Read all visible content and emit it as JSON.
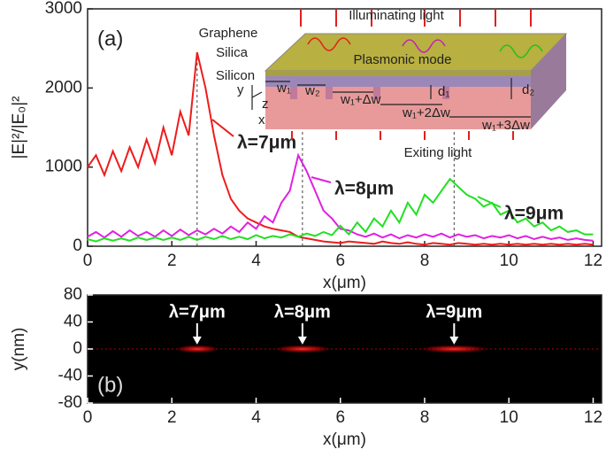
{
  "chart_data": [
    {
      "type": "line",
      "panel": "(a)",
      "ylabel": "|E|²/|E₀|²",
      "xlabel": "x(μm)",
      "xlim": [
        0,
        12.2
      ],
      "ylim": [
        0,
        3000
      ],
      "xticks": [
        0,
        2,
        4,
        6,
        8,
        10,
        12
      ],
      "yticks": [
        0,
        1000,
        2000,
        3000
      ],
      "x": [
        0,
        0.2,
        0.4,
        0.6,
        0.8,
        1,
        1.2,
        1.4,
        1.6,
        1.8,
        2,
        2.2,
        2.4,
        2.6,
        2.8,
        3,
        3.2,
        3.4,
        3.6,
        3.8,
        4,
        4.2,
        4.4,
        4.6,
        4.8,
        5,
        5.2,
        5.4,
        5.6,
        5.8,
        6,
        6.2,
        6.4,
        6.6,
        6.8,
        7,
        7.2,
        7.4,
        7.6,
        7.8,
        8,
        8.2,
        8.4,
        8.6,
        8.8,
        9,
        9.2,
        9.4,
        9.6,
        9.8,
        10,
        10.2,
        10.4,
        10.6,
        10.8,
        11,
        11.2,
        11.4,
        11.6,
        11.8,
        12
      ],
      "series": [
        {
          "name": "λ=7μm",
          "color": "#ee1c1c",
          "peak_x": 2.6,
          "values": [
            1000,
            1150,
            900,
            1200,
            950,
            1250,
            1000,
            1350,
            1050,
            1500,
            1150,
            1700,
            1400,
            2450,
            2000,
            1400,
            900,
            600,
            450,
            350,
            300,
            250,
            220,
            200,
            180,
            120,
            100,
            80,
            60,
            50,
            40,
            60,
            50,
            40,
            30,
            60,
            40,
            30,
            50,
            30,
            20,
            40,
            30,
            20,
            40,
            30,
            20,
            30,
            20,
            30,
            20,
            30,
            20,
            30,
            20,
            30,
            20,
            30,
            20,
            30,
            20
          ]
        },
        {
          "name": "λ=8μm",
          "color": "#e020e0",
          "peak_x": 5.1,
          "values": [
            120,
            180,
            110,
            190,
            120,
            200,
            130,
            180,
            120,
            200,
            130,
            210,
            140,
            200,
            150,
            220,
            160,
            250,
            180,
            300,
            220,
            380,
            300,
            550,
            700,
            1150,
            950,
            700,
            450,
            350,
            220,
            200,
            150,
            120,
            160,
            110,
            150,
            100,
            140,
            110,
            150,
            120,
            160,
            110,
            150,
            120,
            140,
            100,
            130,
            110,
            140,
            100,
            130,
            90,
            120,
            90,
            110,
            80,
            100,
            80,
            70
          ]
        },
        {
          "name": "λ=9μm",
          "color": "#22e022",
          "peak_x": 8.7,
          "values": [
            90,
            60,
            100,
            70,
            100,
            70,
            110,
            80,
            110,
            80,
            110,
            80,
            120,
            80,
            120,
            90,
            130,
            90,
            120,
            90,
            140,
            100,
            130,
            110,
            150,
            120,
            160,
            130,
            180,
            140,
            260,
            150,
            300,
            180,
            350,
            250,
            450,
            300,
            550,
            400,
            650,
            550,
            700,
            850,
            750,
            650,
            600,
            500,
            550,
            400,
            450,
            300,
            350,
            250,
            300,
            200,
            250,
            180,
            200,
            150,
            150
          ]
        }
      ],
      "inset": {
        "labels": [
          "Illuminating light",
          "Graphene",
          "Silica",
          "Silicon",
          "Plasmonic mode",
          "Exiting light",
          "w₁",
          "w₂",
          "w₁+Δw",
          "w₁+2Δw",
          "w₁+3Δw",
          "d₁",
          "d₂",
          "y",
          "z",
          "x"
        ]
      }
    },
    {
      "type": "image",
      "panel": "(b)",
      "ylabel": "y(nm)",
      "xlabel": "x(μm)",
      "xlim": [
        0,
        12.2
      ],
      "ylim": [
        -80,
        80
      ],
      "xticks": [
        0,
        2,
        4,
        6,
        8,
        10,
        12
      ],
      "yticks": [
        80,
        40,
        0,
        -40,
        -80
      ],
      "annotations": [
        {
          "text": "λ=7μm",
          "x": 2.6
        },
        {
          "text": "λ=8μm",
          "x": 5.1
        },
        {
          "text": "λ=9μm",
          "x": 8.7
        }
      ]
    }
  ]
}
